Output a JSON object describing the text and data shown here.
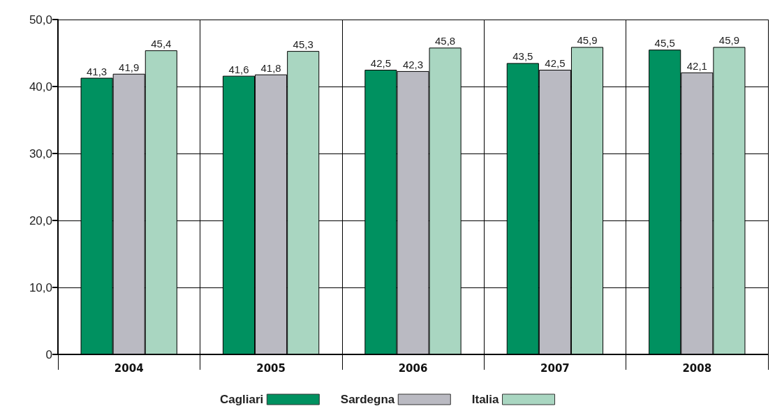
{
  "chart_data": {
    "type": "bar",
    "categories": [
      "2004",
      "2005",
      "2006",
      "2007",
      "2008"
    ],
    "series": [
      {
        "name": "Cagliari",
        "color": "#009160",
        "values": [
          41.3,
          41.6,
          42.5,
          43.5,
          45.5
        ],
        "value_labels": [
          "41,3",
          "41,6",
          "42,5",
          "43,5",
          "45,5"
        ]
      },
      {
        "name": "Sardegna",
        "color": "#babac2",
        "values": [
          41.9,
          41.8,
          42.3,
          42.5,
          42.1
        ],
        "value_labels": [
          "41,9",
          "41,8",
          "42,3",
          "42,5",
          "42,1"
        ]
      },
      {
        "name": "Italia",
        "color": "#a9d6c1",
        "values": [
          45.4,
          45.3,
          45.8,
          45.9,
          45.9
        ],
        "value_labels": [
          "45,4",
          "45,3",
          "45,8",
          "45,9",
          "45,9"
        ]
      }
    ],
    "ylim": [
      0,
      50
    ],
    "yticks": [
      0,
      {
        "value": 10,
        "label": "10,0"
      },
      {
        "value": 20,
        "label": "20,0"
      },
      {
        "value": 30,
        "label": "30,0"
      },
      {
        "value": 40,
        "label": "40,0"
      },
      {
        "value": 50,
        "label": "50,0"
      }
    ],
    "grid": true,
    "legend": "bottom"
  }
}
